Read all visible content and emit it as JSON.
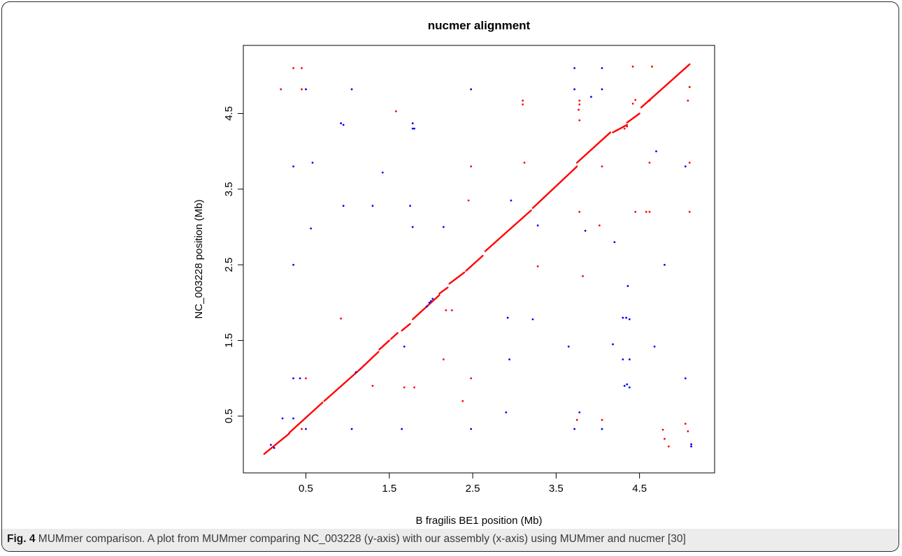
{
  "chart_data": {
    "type": "scatter",
    "title": "nucmer alignment",
    "xlabel": "B fragilis BE1 position (Mb)",
    "ylabel": "NC_003228 position (Mb)",
    "xlim": [
      -0.25,
      5.4
    ],
    "ylim": [
      -0.25,
      5.4
    ],
    "xticks": [
      "0.5",
      "1.5",
      "2.5",
      "3.5",
      "4.5"
    ],
    "yticks": [
      "0.5",
      "1.5",
      "2.5",
      "3.5",
      "4.5"
    ],
    "tick_values": [
      0.5,
      1.5,
      2.5,
      3.5,
      4.5
    ],
    "grid": false,
    "colors": {
      "forward": "#ff0000",
      "reverse": "#0000ff"
    },
    "diagonal_segments": [
      [
        0.0,
        0.0,
        0.3,
        0.27
      ],
      [
        0.3,
        0.28,
        0.7,
        0.68
      ],
      [
        0.72,
        0.7,
        1.15,
        1.12
      ],
      [
        1.15,
        1.12,
        1.37,
        1.35
      ],
      [
        1.38,
        1.38,
        1.5,
        1.5
      ],
      [
        1.52,
        1.52,
        1.6,
        1.6
      ],
      [
        1.65,
        1.63,
        1.75,
        1.72
      ],
      [
        1.78,
        1.78,
        2.1,
        2.1
      ],
      [
        2.1,
        2.12,
        2.2,
        2.2
      ],
      [
        2.22,
        2.25,
        2.4,
        2.4
      ],
      [
        2.42,
        2.42,
        2.62,
        2.62
      ],
      [
        2.65,
        2.68,
        3.2,
        3.22
      ],
      [
        3.22,
        3.25,
        3.75,
        3.8
      ],
      [
        3.75,
        3.85,
        4.15,
        4.25
      ],
      [
        4.18,
        4.25,
        4.35,
        4.35
      ],
      [
        4.35,
        4.38,
        4.5,
        4.5
      ],
      [
        4.52,
        4.58,
        5.1,
        5.15
      ]
    ],
    "forward_points": [
      [
        0.35,
        5.1
      ],
      [
        0.45,
        5.1
      ],
      [
        0.2,
        4.82
      ],
      [
        0.45,
        4.82
      ],
      [
        1.58,
        4.53
      ],
      [
        0.45,
        0.33
      ],
      [
        0.5,
        1.0
      ],
      [
        0.92,
        1.79
      ],
      [
        1.3,
        0.9
      ],
      [
        1.68,
        0.88
      ],
      [
        1.8,
        0.88
      ],
      [
        2.15,
        1.25
      ],
      [
        2.18,
        1.9
      ],
      [
        2.25,
        1.9
      ],
      [
        2.38,
        0.7
      ],
      [
        2.45,
        3.35
      ],
      [
        2.48,
        3.8
      ],
      [
        2.48,
        1.0
      ],
      [
        3.1,
        4.62
      ],
      [
        3.1,
        4.67
      ],
      [
        3.12,
        3.85
      ],
      [
        3.28,
        2.48
      ],
      [
        3.75,
        0.45
      ],
      [
        3.78,
        3.2
      ],
      [
        3.77,
        4.55
      ],
      [
        3.78,
        4.62
      ],
      [
        3.78,
        4.67
      ],
      [
        3.78,
        4.41
      ],
      [
        3.82,
        2.35
      ],
      [
        4.02,
        3.02
      ],
      [
        4.05,
        3.8
      ],
      [
        4.05,
        0.45
      ],
      [
        4.32,
        4.3
      ],
      [
        4.35,
        4.33
      ],
      [
        4.42,
        5.12
      ],
      [
        4.42,
        4.63
      ],
      [
        4.45,
        4.68
      ],
      [
        4.45,
        3.2
      ],
      [
        4.58,
        3.2
      ],
      [
        4.62,
        3.2
      ],
      [
        4.62,
        3.85
      ],
      [
        4.65,
        5.12
      ],
      [
        4.62,
        4.67
      ],
      [
        4.78,
        0.32
      ],
      [
        4.8,
        0.2
      ],
      [
        4.85,
        0.1
      ],
      [
        5.05,
        0.4
      ],
      [
        5.08,
        0.3
      ],
      [
        5.08,
        4.67
      ],
      [
        5.1,
        4.85
      ],
      [
        5.1,
        3.85
      ],
      [
        5.1,
        3.2
      ],
      [
        5.12,
        0.1
      ]
    ],
    "reverse_points": [
      [
        0.08,
        0.12
      ],
      [
        0.12,
        0.08
      ],
      [
        0.22,
        0.47
      ],
      [
        0.35,
        0.47
      ],
      [
        0.35,
        1.0
      ],
      [
        0.35,
        2.5
      ],
      [
        0.35,
        3.8
      ],
      [
        0.5,
        4.82
      ],
      [
        0.5,
        0.33
      ],
      [
        0.43,
        1.0
      ],
      [
        0.56,
        2.98
      ],
      [
        0.58,
        3.85
      ],
      [
        0.92,
        4.37
      ],
      [
        0.95,
        4.35
      ],
      [
        0.95,
        3.28
      ],
      [
        1.05,
        0.33
      ],
      [
        1.05,
        4.82
      ],
      [
        1.1,
        1.08
      ],
      [
        1.3,
        3.28
      ],
      [
        1.42,
        3.72
      ],
      [
        1.65,
        0.33
      ],
      [
        1.68,
        1.42
      ],
      [
        1.75,
        3.28
      ],
      [
        1.78,
        4.37
      ],
      [
        1.78,
        4.3
      ],
      [
        1.8,
        4.3
      ],
      [
        1.78,
        3.0
      ],
      [
        1.95,
        1.95
      ],
      [
        1.98,
        2.0
      ],
      [
        2.0,
        2.02
      ],
      [
        2.02,
        2.05
      ],
      [
        2.15,
        3.0
      ],
      [
        2.48,
        4.82
      ],
      [
        2.48,
        0.33
      ],
      [
        2.9,
        0.55
      ],
      [
        2.92,
        1.8
      ],
      [
        2.94,
        1.25
      ],
      [
        2.96,
        3.35
      ],
      [
        3.22,
        1.78
      ],
      [
        3.28,
        3.02
      ],
      [
        3.65,
        1.42
      ],
      [
        3.72,
        5.1
      ],
      [
        3.72,
        4.82
      ],
      [
        3.72,
        0.33
      ],
      [
        3.78,
        0.55
      ],
      [
        3.85,
        2.95
      ],
      [
        3.92,
        4.72
      ],
      [
        4.05,
        5.1
      ],
      [
        4.05,
        4.82
      ],
      [
        4.05,
        0.33
      ],
      [
        4.18,
        1.45
      ],
      [
        4.2,
        2.8
      ],
      [
        4.3,
        1.8
      ],
      [
        4.3,
        1.25
      ],
      [
        4.32,
        0.9
      ],
      [
        4.34,
        1.8
      ],
      [
        4.35,
        0.92
      ],
      [
        4.36,
        2.22
      ],
      [
        4.38,
        1.25
      ],
      [
        4.38,
        0.88
      ],
      [
        4.38,
        1.78
      ],
      [
        4.68,
        1.42
      ],
      [
        4.7,
        4.0
      ],
      [
        4.8,
        2.5
      ],
      [
        5.05,
        3.8
      ],
      [
        5.05,
        1.0
      ],
      [
        5.12,
        0.13
      ],
      [
        5.12,
        0.1
      ]
    ]
  },
  "caption": {
    "label": "Fig. 4",
    "text": "MUMmer comparison. A plot from MUMmer comparing NC_003228 (y-axis) with our assembly (x-axis) using MUMmer and nucmer [30]"
  }
}
